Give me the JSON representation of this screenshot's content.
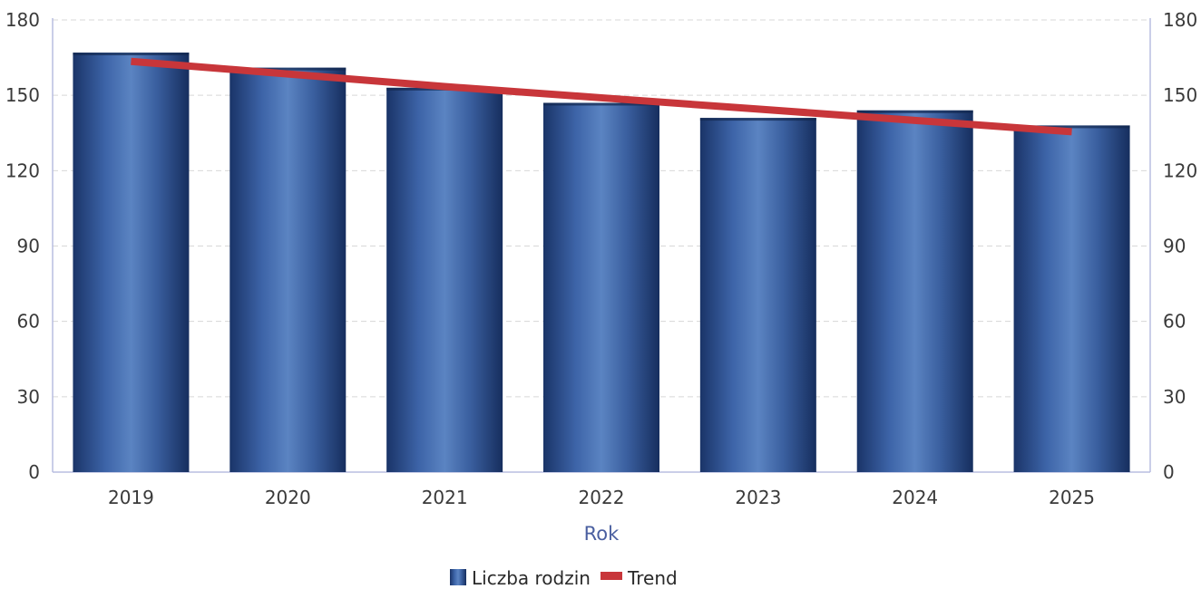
{
  "chart_data": {
    "type": "bar",
    "categories": [
      "2019",
      "2020",
      "2021",
      "2022",
      "2023",
      "2024",
      "2025"
    ],
    "series": [
      {
        "name": "Liczba rodzin",
        "type": "bar",
        "values": [
          167,
          161,
          153,
          147,
          141,
          144,
          138
        ]
      },
      {
        "name": "Trend",
        "type": "line",
        "values": [
          163.5,
          158.5,
          153.5,
          149,
          144.5,
          140,
          135.5
        ]
      }
    ],
    "title": "",
    "xlabel": "Rok",
    "ylabel": "",
    "ylim": [
      0,
      180
    ],
    "yticks": [
      "0",
      "30",
      "60",
      "90",
      "120",
      "150",
      "180"
    ],
    "secondary_ylim": [
      0,
      180
    ],
    "grid": true,
    "legend_position": "bottom",
    "colors": {
      "bar": "#1f3f7a",
      "bar_highlight": "#5d86c4",
      "trend": "#c8363a",
      "grid": "#d8d8d8",
      "axis": "#b8bde0"
    }
  }
}
